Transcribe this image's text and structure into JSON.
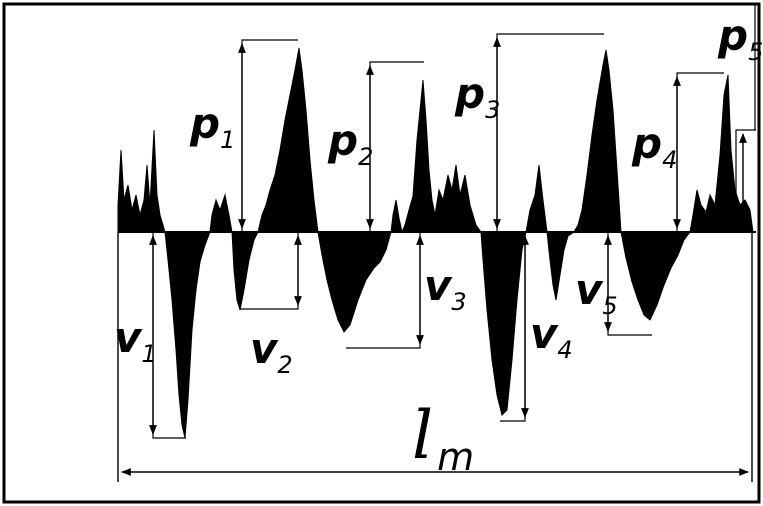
{
  "colors": {
    "ink": "#000000",
    "paper": "#ffffff"
  },
  "labels": {
    "p1": {
      "main": "p",
      "sub": "1"
    },
    "p2": {
      "main": "p",
      "sub": "2"
    },
    "p3": {
      "main": "p",
      "sub": "3"
    },
    "p4": {
      "main": "p",
      "sub": "4"
    },
    "p5": {
      "main": "p",
      "sub": "5"
    },
    "v1": {
      "main": "v",
      "sub": "1"
    },
    "v2": {
      "main": "v",
      "sub": "2"
    },
    "v3": {
      "main": "v",
      "sub": "3"
    },
    "v4": {
      "main": "v",
      "sub": "4"
    },
    "v5": {
      "main": "v",
      "sub": "5"
    },
    "lm": {
      "main": "l",
      "sub": "m"
    }
  }
}
